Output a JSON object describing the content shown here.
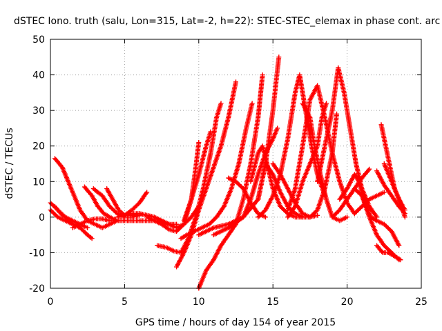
{
  "chart_data": {
    "type": "scatter",
    "title": "dSTEC Iono. truth (salu, Lon=315, Lat=-2, h=22): STEC-STEC_elemax in phase cont. arc",
    "xlabel": "GPS time / hours of day 154 of year 2015",
    "ylabel": "dSTEC  / TECUs",
    "xlim": [
      0,
      25
    ],
    "ylim": [
      -20,
      50
    ],
    "xticks": [
      "0",
      "5",
      "10",
      "15",
      "20",
      "25"
    ],
    "yticks": [
      "-20",
      "-10",
      "0",
      "10",
      "20",
      "30",
      "40",
      "50"
    ],
    "grid": true,
    "marker": "+",
    "color": "#ff0000",
    "series": [
      {
        "x": [
          0.0,
          0.5,
          1.0,
          1.5,
          2.0,
          2.5
        ],
        "y": [
          4,
          2,
          0,
          -1,
          -2,
          -3
        ]
      },
      {
        "x": [
          0.0,
          0.5,
          1.0,
          1.5,
          2.0,
          2.5,
          2.8
        ],
        "y": [
          2,
          0,
          -1,
          -2,
          -3,
          -5,
          -6
        ]
      },
      {
        "x": [
          0.3,
          0.7,
          1.0,
          1.3,
          1.5,
          1.8,
          2.0
        ],
        "y": [
          3,
          1,
          0,
          -1,
          -2,
          -2,
          -3
        ]
      },
      {
        "x": [
          0.3,
          0.8,
          1.2,
          1.7,
          2.0,
          2.5,
          3.0,
          3.5,
          4.0,
          4.5
        ],
        "y": [
          16.5,
          14,
          10,
          5,
          2,
          -1,
          -2,
          -3,
          -2,
          -1
        ]
      },
      {
        "x": [
          1.5,
          2.0,
          2.5,
          3.0,
          3.5,
          4.0,
          4.5
        ],
        "y": [
          -3,
          -2,
          -1,
          -0.5,
          -0.5,
          -1,
          -1
        ]
      },
      {
        "x": [
          2.3,
          2.8,
          3.2,
          3.6,
          4.0,
          4.5,
          5.0,
          6.0,
          7.0,
          8.0
        ],
        "y": [
          8.5,
          6,
          3,
          1,
          0,
          -1,
          -1,
          -1,
          -1,
          -2
        ]
      },
      {
        "x": [
          2.9,
          3.5,
          4.0,
          4.5,
          5.0,
          5.5,
          6.0
        ],
        "y": [
          8,
          6,
          3,
          1,
          0,
          0,
          0.5
        ]
      },
      {
        "x": [
          3.8,
          4.2,
          4.6,
          5.0,
          5.5,
          6.0,
          6.5,
          7.0,
          7.5,
          8.0,
          8.5
        ],
        "y": [
          8,
          5,
          2,
          0.5,
          0.5,
          1,
          0.5,
          0,
          -1,
          -2,
          -2
        ]
      },
      {
        "x": [
          4.5,
          5.0,
          5.5,
          6.0,
          6.5
        ],
        "y": [
          0,
          0.5,
          2,
          4,
          7
        ]
      },
      {
        "x": [
          5.0,
          5.5,
          6.0,
          6.5,
          7.0,
          7.5,
          8.0,
          8.5,
          9.0,
          9.5,
          10.0
        ],
        "y": [
          0.5,
          1,
          1,
          0.5,
          0,
          -1,
          -2,
          -3,
          -2,
          0,
          3
        ]
      },
      {
        "x": [
          6.5,
          7.0,
          7.5,
          8.0,
          8.5,
          9.0,
          9.5,
          9.8,
          10.0
        ],
        "y": [
          0,
          -1,
          -2,
          -3.5,
          -4,
          -2,
          5,
          14,
          21
        ]
      },
      {
        "x": [
          7.2,
          7.8,
          8.3,
          8.8,
          9.3,
          9.8,
          10.3,
          10.8,
          11.2,
          11.5
        ],
        "y": [
          -8,
          -8.5,
          -9.5,
          -10,
          -6,
          0,
          8,
          18,
          28,
          32
        ]
      },
      {
        "x": [
          8.5,
          9.0,
          9.5,
          10.0,
          10.5,
          11.0,
          11.5,
          12.0,
          12.5
        ],
        "y": [
          -14,
          -10,
          -5,
          2,
          8,
          14,
          20,
          28,
          38
        ]
      },
      {
        "x": [
          9.0,
          9.5,
          10.0,
          10.5,
          10.8
        ],
        "y": [
          -1,
          5,
          12,
          20,
          24
        ]
      },
      {
        "x": [
          10.0,
          10.5,
          11.0,
          11.5,
          12.0,
          12.5,
          13.0,
          13.5,
          14.0,
          14.3
        ],
        "y": [
          -20,
          -15,
          -12,
          -8,
          -5,
          -2,
          5,
          15,
          28,
          40
        ]
      },
      {
        "x": [
          8.8,
          9.2,
          9.7,
          10.2,
          10.7,
          11.2,
          11.7,
          12.2,
          12.7,
          13.2,
          13.6
        ],
        "y": [
          -6,
          -5,
          -4,
          -3,
          -2,
          0,
          3,
          8,
          15,
          25,
          32
        ]
      },
      {
        "x": [
          10.0,
          11.0,
          12.0,
          13.0,
          14.0,
          14.5,
          15.0,
          15.4
        ],
        "y": [
          -5,
          -3,
          -2,
          0,
          5,
          15,
          30,
          45
        ]
      },
      {
        "x": [
          11.0,
          12.0,
          13.0,
          14.0,
          14.5,
          15.0,
          15.5,
          16.0,
          16.5,
          17.0,
          17.5,
          18.0
        ],
        "y": [
          -5,
          -3,
          0,
          5,
          15,
          12,
          7,
          3,
          1,
          0,
          0,
          0.5
        ]
      },
      {
        "x": [
          12.0,
          13.0,
          13.5,
          14.0,
          14.5,
          15.0,
          15.3
        ],
        "y": [
          -3,
          0,
          5,
          12,
          18,
          22,
          25
        ]
      },
      {
        "x": [
          12.0,
          12.5,
          13.0,
          13.5,
          14.0,
          14.5
        ],
        "y": [
          11,
          10,
          8,
          4,
          1,
          0
        ]
      },
      {
        "x": [
          13.5,
          14.0,
          14.3,
          14.6,
          15.0,
          15.5,
          16.0,
          16.5,
          17.0
        ],
        "y": [
          10,
          18,
          20,
          15,
          8,
          3,
          1,
          0,
          0
        ]
      },
      {
        "x": [
          14.0,
          14.5,
          15.0,
          15.5,
          16.0,
          16.5,
          16.8,
          17.2,
          17.6,
          18.0,
          18.5
        ],
        "y": [
          0,
          2,
          6,
          12,
          22,
          35,
          40,
          30,
          20,
          12,
          6
        ]
      },
      {
        "x": [
          15.0,
          15.5,
          16.0,
          16.5,
          17.0,
          17.5,
          18.0,
          18.5,
          19.0,
          19.3
        ],
        "y": [
          15,
          12,
          8,
          4,
          1,
          0,
          2,
          8,
          18,
          29
        ]
      },
      {
        "x": [
          16.0,
          16.5,
          17.0,
          17.5,
          18.0,
          18.5,
          19.0,
          19.5,
          20.0,
          20.5
        ],
        "y": [
          2,
          8,
          20,
          33,
          37,
          28,
          18,
          10,
          4,
          1
        ]
      },
      {
        "x": [
          17.0,
          17.5,
          17.8,
          18.2,
          18.6,
          19.0,
          19.5,
          20.0
        ],
        "y": [
          32,
          28,
          20,
          12,
          5,
          0,
          -1,
          0
        ]
      },
      {
        "x": [
          16.0,
          16.5,
          17.0,
          17.5,
          18.0,
          18.3,
          18.6
        ],
        "y": [
          0,
          3,
          10,
          15,
          20,
          28,
          32
        ]
      },
      {
        "x": [
          18.0,
          18.5,
          19.0,
          19.4,
          19.8,
          20.2,
          20.6,
          21.0,
          21.5,
          22.0
        ],
        "y": [
          10,
          20,
          30,
          42,
          35,
          25,
          15,
          8,
          3,
          0
        ]
      },
      {
        "x": [
          19.0,
          19.5,
          20.0,
          20.5,
          21.0,
          21.5,
          22.0,
          22.5,
          23.0,
          23.5
        ],
        "y": [
          0,
          2,
          5,
          8,
          6,
          0,
          -5,
          -8,
          -10,
          -12
        ]
      },
      {
        "x": [
          19.5,
          20.0,
          20.5,
          20.8,
          21.2,
          21.6,
          22.0,
          22.5,
          23.0,
          23.5
        ],
        "y": [
          5,
          8,
          12,
          10,
          4,
          0,
          -1,
          -2,
          -4,
          -8
        ]
      },
      {
        "x": [
          20.5,
          21.0,
          21.5,
          22.0,
          22.5
        ],
        "y": [
          1,
          3,
          5,
          6,
          7
        ]
      },
      {
        "x": [
          20.5,
          21.0,
          21.5
        ],
        "y": [
          8,
          11,
          13.5
        ]
      },
      {
        "x": [
          22.0,
          22.5,
          23.0,
          23.5,
          23.9
        ],
        "y": [
          13,
          9,
          6,
          3,
          1
        ]
      },
      {
        "x": [
          22.3,
          22.6,
          22.9,
          23.2,
          23.6,
          23.9
        ],
        "y": [
          26,
          20,
          14,
          8,
          4,
          0
        ]
      },
      {
        "x": [
          22.5,
          23.0,
          23.5,
          23.9
        ],
        "y": [
          15,
          10,
          5,
          2
        ]
      },
      {
        "x": [
          22.0,
          22.4,
          22.8,
          23.2,
          23.6
        ],
        "y": [
          -8,
          -10,
          -10,
          -11,
          -12
        ]
      }
    ]
  }
}
